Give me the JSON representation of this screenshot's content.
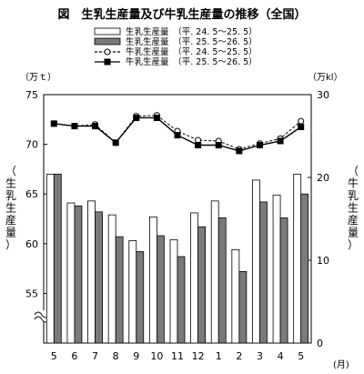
{
  "chart_data": {
    "type": "bar",
    "title": "図　生乳生産量及び牛乳生産量の推移（全国）",
    "categories": [
      "5",
      "6",
      "7",
      "8",
      "9",
      "10",
      "11",
      "12",
      "1",
      "2",
      "3",
      "4",
      "5"
    ],
    "x_unit": "(月)",
    "left_axis": {
      "label_chars": [
        "（",
        "生",
        "乳",
        "生",
        "産",
        "量",
        "）"
      ],
      "unit": "（万ｔ）",
      "ylim": [
        50,
        75
      ],
      "ticks": [
        55,
        60,
        65,
        70,
        75
      ],
      "break_mark": true
    },
    "right_axis": {
      "label_chars": [
        "（",
        "牛",
        "乳",
        "生",
        "産",
        "量",
        "）"
      ],
      "unit": "（万kl）",
      "ylim": [
        0,
        30
      ],
      "ticks": [
        0,
        10,
        20,
        30
      ]
    },
    "series": [
      {
        "name": "生乳生産量　（平. 24. 5～25. 5）",
        "kind": "bar",
        "fill": "#ffffff",
        "axis": "left",
        "values": [
          67.0,
          64.1,
          64.3,
          62.9,
          60.3,
          62.7,
          60.4,
          63.1,
          64.3,
          59.4,
          66.4,
          64.9,
          67.0
        ]
      },
      {
        "name": "生乳生産量　（平. 25. 5～26. 5）",
        "kind": "bar",
        "fill": "#7a7a7a",
        "axis": "left",
        "values": [
          67.0,
          63.8,
          63.2,
          60.7,
          59.2,
          60.8,
          58.7,
          61.7,
          62.6,
          57.2,
          64.2,
          62.6,
          65.0
        ]
      },
      {
        "name": "牛乳生産量　（平. 24. 5～25. 5）",
        "kind": "line",
        "dashed": true,
        "marker": "circle-open",
        "axis": "right",
        "values": [
          26.5,
          26.2,
          26.4,
          24.2,
          27.4,
          27.5,
          25.6,
          24.5,
          24.4,
          23.4,
          24.1,
          24.7,
          26.8
        ]
      },
      {
        "name": "牛乳生産量　（平. 25. 5～26. 5）",
        "kind": "line",
        "dashed": false,
        "marker": "square-filled",
        "axis": "right",
        "values": [
          26.5,
          26.2,
          26.2,
          24.2,
          27.2,
          27.2,
          25.1,
          23.9,
          23.9,
          23.2,
          23.9,
          24.4,
          26.1
        ]
      }
    ]
  }
}
